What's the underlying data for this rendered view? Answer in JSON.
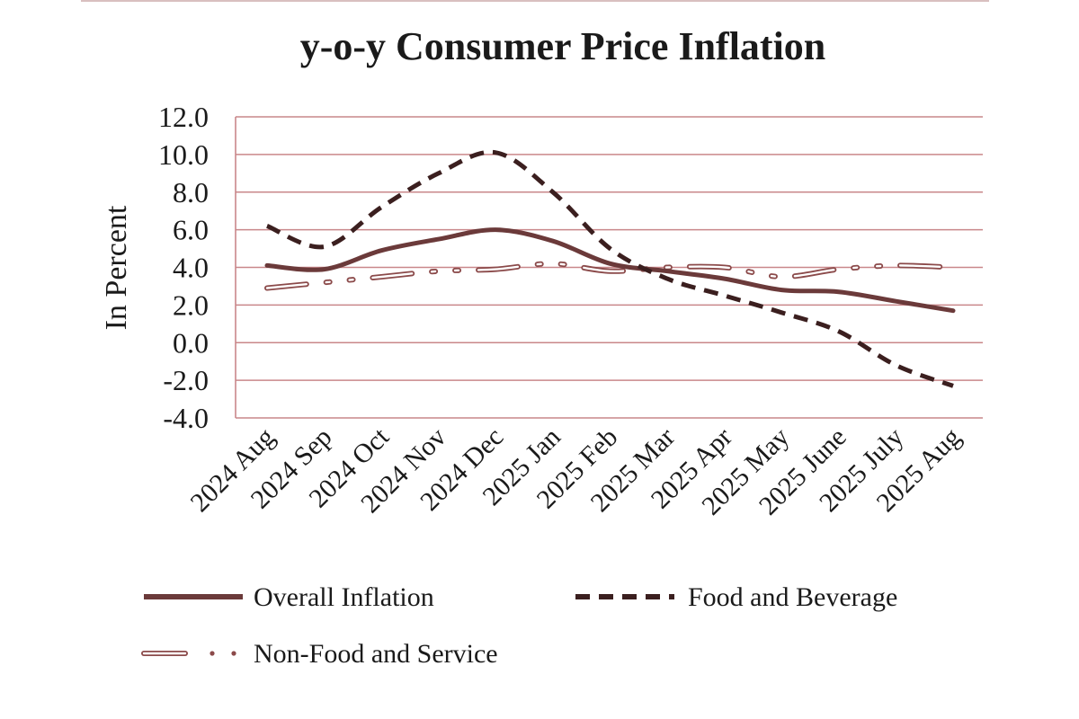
{
  "chart_data": {
    "type": "line",
    "title": "y-o-y Consumer Price Inflation",
    "xlabel": "",
    "ylabel": "In Percent",
    "ylim": [
      -4.0,
      12.0
    ],
    "ytick_step": 2.0,
    "grid": true,
    "legend_position": "bottom",
    "categories": [
      "2024 Aug",
      "2024 Sep",
      "2024 Oct",
      "2024 Nov",
      "2024 Dec",
      "2025 Jan",
      "2025 Feb",
      "2025 Mar",
      "2025 Apr",
      "2025 May",
      "2025 June",
      "2025 July",
      "2025 Aug"
    ],
    "series": [
      {
        "name": "Overall Inflation",
        "style": "solid",
        "color": "#6b3a3a",
        "values": [
          4.1,
          3.9,
          4.9,
          5.5,
          6.0,
          5.4,
          4.2,
          3.8,
          3.4,
          2.8,
          2.7,
          2.2,
          1.7
        ]
      },
      {
        "name": "Food and Beverage",
        "style": "dashed",
        "color": "#3b1f1f",
        "values": [
          6.2,
          5.1,
          7.2,
          9.0,
          10.1,
          8.0,
          5.0,
          3.4,
          2.5,
          1.6,
          0.6,
          -1.2,
          -2.3
        ]
      },
      {
        "name": "Non-Food and Service",
        "style": "outline-dotted",
        "color": "#8b4a4a",
        "values": [
          2.9,
          3.2,
          3.5,
          3.8,
          3.9,
          4.2,
          3.8,
          4.0,
          4.0,
          3.5,
          3.9,
          4.1,
          4.0
        ]
      }
    ]
  }
}
